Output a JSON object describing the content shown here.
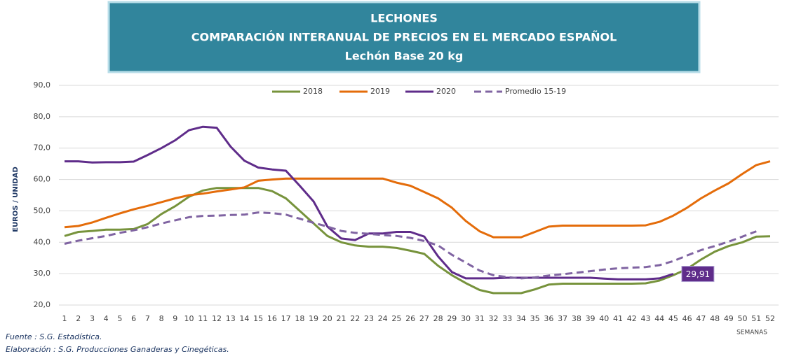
{
  "chart_data": {
    "type": "line",
    "title": [
      "LECHONES",
      "COMPARACIÓN INTERANUAL DE PRECIOS EN EL MERCADO ESPAÑOL",
      "Lechón Base 20 kg"
    ],
    "y_label": "EUROS / UNIDAD",
    "x_label": "SEMANAS",
    "footnotes": [
      "Fuente :  S.G. Estadística.",
      "Elaboración : S.G. Producciones Ganaderas y Cinegéticas."
    ],
    "categories": [
      "1",
      "2",
      "3",
      "4",
      "5",
      "6",
      "7",
      "8",
      "9",
      "10",
      "11",
      "12",
      "13",
      "14",
      "15",
      "16",
      "17",
      "18",
      "19",
      "20",
      "21",
      "22",
      "23",
      "24",
      "25",
      "26",
      "27",
      "28",
      "29",
      "30",
      "31",
      "32",
      "33",
      "34",
      "35",
      "36",
      "37",
      "38",
      "39",
      "40",
      "41",
      "42",
      "43",
      "44",
      "45",
      "46",
      "47",
      "48",
      "49",
      "50",
      "51",
      "52"
    ],
    "ylim": [
      20,
      90
    ],
    "yticks": [
      {
        "value": 20,
        "label": "20,0"
      },
      {
        "value": 30,
        "label": "30,0"
      },
      {
        "value": 40,
        "label": "40,0"
      },
      {
        "value": 50,
        "label": "50,0"
      },
      {
        "value": 60,
        "label": "60,0"
      },
      {
        "value": 70,
        "label": "70,0"
      },
      {
        "value": 80,
        "label": "80,0"
      },
      {
        "value": 90,
        "label": "90,0"
      }
    ],
    "grid": true,
    "legend": "top",
    "series": [
      {
        "name": "2018",
        "color": "#77933c",
        "dashed": false,
        "values": [
          42,
          43.3,
          43.6,
          44,
          44,
          44.2,
          45.8,
          49,
          51.5,
          54.5,
          56.5,
          57.3,
          57.3,
          57.3,
          57.3,
          56.3,
          54,
          50,
          46,
          42,
          40,
          39,
          38.6,
          38.6,
          38.2,
          37.3,
          36.3,
          32.5,
          29.5,
          27,
          24.8,
          23.8,
          23.8,
          23.8,
          25,
          26.5,
          26.8,
          26.8,
          26.8,
          26.8,
          26.8,
          26.8,
          26.9,
          27.8,
          29.5,
          31.5,
          34.5,
          37,
          38.8,
          40,
          41.8,
          41.9
        ]
      },
      {
        "name": "2019",
        "color": "#e46c0a",
        "dashed": false,
        "values": [
          44.8,
          45.2,
          46.3,
          47.8,
          49.2,
          50.5,
          51.6,
          52.8,
          54,
          55,
          55.5,
          56.2,
          56.8,
          57.5,
          59.6,
          60,
          60.3,
          60.3,
          60.3,
          60.3,
          60.3,
          60.3,
          60.3,
          60.3,
          59,
          58,
          56,
          54,
          51,
          46.8,
          43.5,
          41.6,
          41.6,
          41.6,
          43.3,
          45,
          45.3,
          45.3,
          45.3,
          45.3,
          45.3,
          45.3,
          45.4,
          46.5,
          48.5,
          51,
          54,
          56.5,
          58.8,
          61.8,
          64.6,
          65.8
        ]
      },
      {
        "name": "2020",
        "color": "#5f2c8a",
        "dashed": false,
        "values": [
          65.8,
          65.8,
          65.4,
          65.5,
          65.5,
          65.7,
          67.8,
          70,
          72.5,
          75.7,
          76.8,
          76.5,
          70.5,
          66,
          63.8,
          63.2,
          62.8,
          58,
          53,
          45,
          41.2,
          40.7,
          42.8,
          42.8,
          43.3,
          43.3,
          41.8,
          35.5,
          30.5,
          28.5,
          28.5,
          28.5,
          28.7,
          28.7,
          28.7,
          28.7,
          28.7,
          28.7,
          28.7,
          28.4,
          28.2,
          28.2,
          28.2,
          28.5,
          29.91,
          null,
          null,
          null,
          null,
          null,
          null,
          null
        ],
        "value_labels": [
          null,
          null,
          null,
          null,
          null,
          null,
          null,
          null,
          null,
          null,
          null,
          null,
          null,
          null,
          null,
          null,
          null,
          null,
          null,
          null,
          null,
          null,
          null,
          null,
          null,
          null,
          null,
          null,
          null,
          null,
          null,
          null,
          null,
          null,
          null,
          null,
          null,
          null,
          null,
          null,
          null,
          null,
          null,
          null,
          "29,91",
          null,
          null,
          null,
          null,
          null,
          null,
          null
        ]
      },
      {
        "name": "Promedio 15-19",
        "color": "#8064a2",
        "dashed": true,
        "values": [
          39.5,
          40.5,
          41.3,
          42,
          43,
          43.8,
          44.8,
          46,
          47,
          48,
          48.4,
          48.5,
          48.7,
          48.8,
          49.5,
          49.3,
          48.8,
          47.5,
          46.2,
          45,
          43.6,
          43,
          42.7,
          42.3,
          42,
          41.4,
          40.4,
          39,
          36,
          33.5,
          31,
          29.5,
          28.9,
          28.5,
          28.8,
          29.4,
          29.8,
          30.3,
          30.8,
          31.3,
          31.7,
          31.9,
          32.1,
          32.7,
          34,
          35.8,
          37.5,
          38.8,
          40.2,
          41.8,
          43.5,
          null
        ]
      }
    ]
  }
}
